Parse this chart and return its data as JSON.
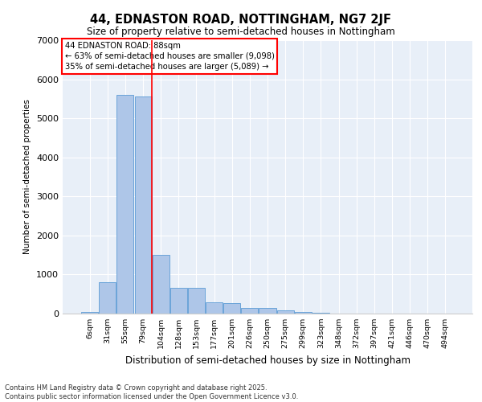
{
  "title": "44, EDNASTON ROAD, NOTTINGHAM, NG7 2JF",
  "subtitle": "Size of property relative to semi-detached houses in Nottingham",
  "xlabel": "Distribution of semi-detached houses by size in Nottingham",
  "ylabel": "Number of semi-detached properties",
  "categories": [
    "6sqm",
    "31sqm",
    "55sqm",
    "79sqm",
    "104sqm",
    "128sqm",
    "153sqm",
    "177sqm",
    "201sqm",
    "226sqm",
    "250sqm",
    "275sqm",
    "299sqm",
    "323sqm",
    "348sqm",
    "372sqm",
    "397sqm",
    "421sqm",
    "446sqm",
    "470sqm",
    "494sqm"
  ],
  "values": [
    50,
    800,
    5600,
    5550,
    1500,
    650,
    650,
    280,
    270,
    150,
    150,
    80,
    50,
    30,
    10,
    5,
    2,
    1,
    1,
    0,
    0
  ],
  "bar_color": "#aec6e8",
  "bar_edgecolor": "#5b9bd5",
  "vline_color": "red",
  "annotation_title": "44 EDNASTON ROAD: 88sqm",
  "annotation_line1": "← 63% of semi-detached houses are smaller (9,098)",
  "annotation_line2": "35% of semi-detached houses are larger (5,089) →",
  "ylim": [
    0,
    7000
  ],
  "yticks": [
    0,
    1000,
    2000,
    3000,
    4000,
    5000,
    6000,
    7000
  ],
  "bg_color": "#e8eff8",
  "footer1": "Contains HM Land Registry data © Crown copyright and database right 2025.",
  "footer2": "Contains public sector information licensed under the Open Government Licence v3.0."
}
